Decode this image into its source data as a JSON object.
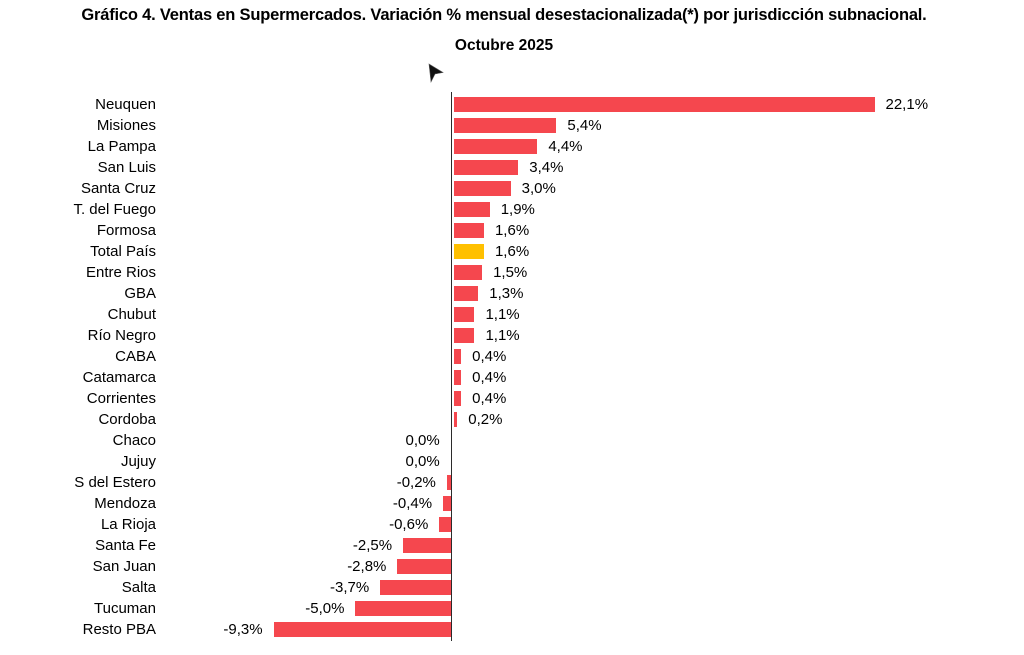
{
  "page": {
    "background": "#FFFFFF"
  },
  "icons": {
    "cursor": "mouse-pointer"
  },
  "chart_data": {
    "type": "bar",
    "orientation": "horizontal",
    "title": "Gráfico 4. Ventas en Supermercados. Variación % mensual desestacionalizada(*) por jurisdicción subnacional.",
    "subtitle": "Octubre 2025",
    "categories": [
      "Neuquen",
      "Misiones",
      "La Pampa",
      "San Luis",
      "Santa Cruz",
      "T. del Fuego",
      "Formosa",
      "Total País",
      "Entre Rios",
      "GBA",
      "Chubut",
      "Río Negro",
      "CABA",
      "Catamarca",
      "Corrientes",
      "Cordoba",
      "Chaco",
      "Jujuy",
      "S del Estero",
      "Mendoza",
      "La Rioja",
      "Santa Fe",
      "San Juan",
      "Salta",
      "Tucuman",
      "Resto PBA"
    ],
    "values": [
      22.1,
      5.4,
      4.4,
      3.4,
      3.0,
      1.9,
      1.6,
      1.6,
      1.5,
      1.3,
      1.1,
      1.1,
      0.4,
      0.4,
      0.4,
      0.2,
      0.0,
      0.0,
      -0.2,
      -0.4,
      -0.6,
      -2.5,
      -2.8,
      -3.7,
      -5.0,
      -9.3
    ],
    "value_labels": [
      "22,1%",
      "5,4%",
      "4,4%",
      "3,4%",
      "3,0%",
      "1,9%",
      "1,6%",
      "1,6%",
      "1,5%",
      "1,3%",
      "1,1%",
      "1,1%",
      "0,4%",
      "0,4%",
      "0,4%",
      "0,2%",
      "0,0%",
      "0,0%",
      "-0,2%",
      "-0,4%",
      "-0,6%",
      "-2,5%",
      "-2,8%",
      "-3,7%",
      "-5,0%",
      "-9,3%"
    ],
    "highlight_index": 7,
    "colors": {
      "bar": "#F5474E",
      "highlight": "#FFC000",
      "axis": "#2B2B2B",
      "text": "#000000"
    },
    "xlabel": "",
    "ylabel": "",
    "xlim": [
      -10,
      25
    ],
    "grid": false,
    "legend": false
  }
}
